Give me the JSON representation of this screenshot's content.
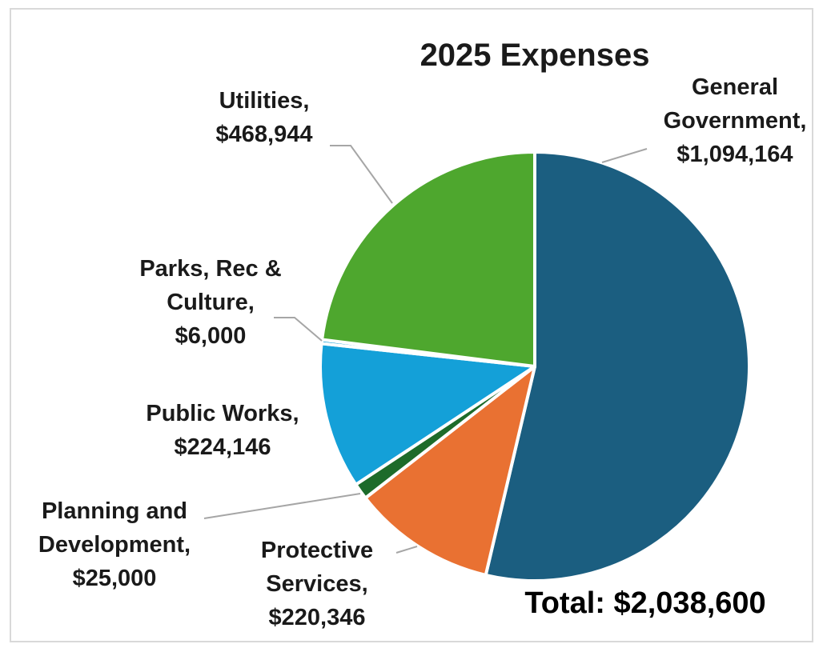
{
  "chart_data": {
    "type": "pie",
    "title": "2025 Expenses",
    "total_label": "Total: $2,038,600",
    "slices": [
      {
        "name": "General Government",
        "value": 1094164,
        "value_label": "$1,094,164",
        "color": "#1b5e80",
        "label_lines": [
          "General",
          "Government,",
          "$1,094,164"
        ]
      },
      {
        "name": "Protective Services",
        "value": 220346,
        "value_label": "$220,346",
        "color": "#e97132",
        "label_lines": [
          "Protective",
          "Services,",
          "$220,346"
        ]
      },
      {
        "name": "Planning and Development",
        "value": 25000,
        "value_label": "$25,000",
        "color": "#1d6b2a",
        "label_lines": [
          "Planning and",
          "Development,",
          "$25,000"
        ]
      },
      {
        "name": "Public Works",
        "value": 224146,
        "value_label": "$224,146",
        "color": "#14a0d8",
        "label_lines": [
          "Public Works,",
          "$224,146"
        ]
      },
      {
        "name": "Parks, Rec & Culture",
        "value": 6000,
        "value_label": "$6,000",
        "color": "#0f9ed5",
        "label_lines": [
          "Parks, Rec &",
          "Culture,",
          "$6,000"
        ]
      },
      {
        "name": "Utilities",
        "value": 468944,
        "value_label": "$468,944",
        "color": "#4ea72e",
        "label_lines": [
          "Utilities,",
          "$468,944"
        ]
      }
    ],
    "legend": "none"
  }
}
